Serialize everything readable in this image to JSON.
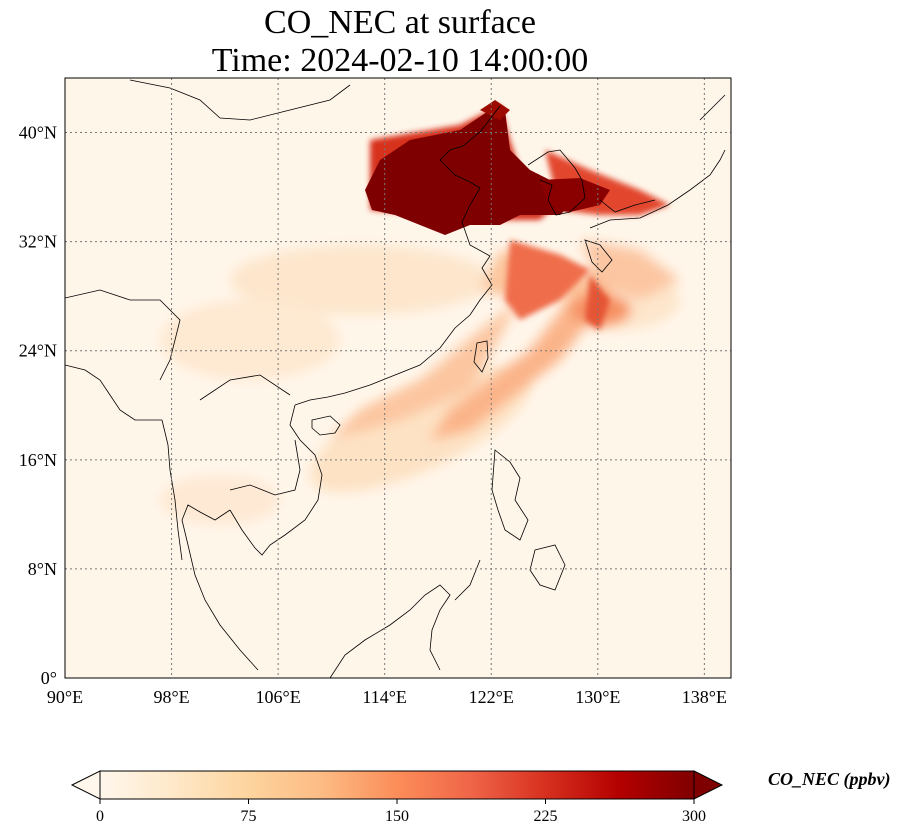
{
  "title": {
    "line1": "CO_NEC at surface",
    "line2": "Time: 2024-02-10 14:00:00"
  },
  "map": {
    "lon_range": [
      90,
      140
    ],
    "lat_range": [
      0,
      44
    ],
    "lon_ticks": [
      {
        "value": 90,
        "label": "90°E"
      },
      {
        "value": 98,
        "label": "98°E"
      },
      {
        "value": 106,
        "label": "106°E"
      },
      {
        "value": 114,
        "label": "114°E"
      },
      {
        "value": 122,
        "label": "122°E"
      },
      {
        "value": 130,
        "label": "130°E"
      },
      {
        "value": 138,
        "label": "138°E"
      }
    ],
    "lat_ticks": [
      {
        "value": 0,
        "label": "0°"
      },
      {
        "value": 8,
        "label": "8°N"
      },
      {
        "value": 16,
        "label": "16°N"
      },
      {
        "value": 24,
        "label": "24°N"
      },
      {
        "value": 32,
        "label": "32°N"
      },
      {
        "value": 40,
        "label": "40°N"
      }
    ],
    "gridlines": true,
    "colormap": "OrRd"
  },
  "colorbar": {
    "label": "CO_NEC (ppbv)",
    "min": 0,
    "max": 300,
    "ticks": [
      {
        "value": 0,
        "label": "0"
      },
      {
        "value": 75,
        "label": "75"
      },
      {
        "value": 150,
        "label": "150"
      },
      {
        "value": 225,
        "label": "225"
      },
      {
        "value": 300,
        "label": "300"
      }
    ],
    "extend": "both",
    "colors": [
      "#fff7ec",
      "#fee8c8",
      "#fdd49e",
      "#fdbb84",
      "#fc8d59",
      "#ef6548",
      "#d7301f",
      "#b30000",
      "#7f0000"
    ]
  }
}
